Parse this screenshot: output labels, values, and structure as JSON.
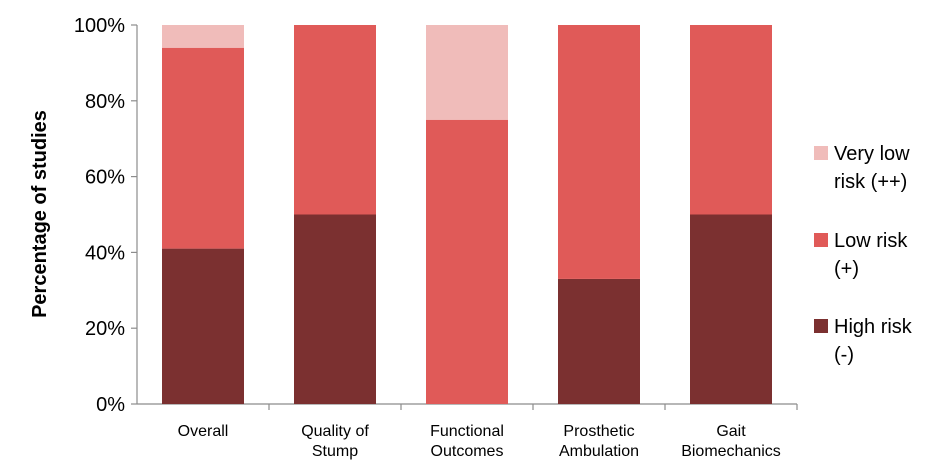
{
  "chart_data": {
    "type": "bar",
    "stacked": true,
    "percent": true,
    "categories": [
      [
        "Overall"
      ],
      [
        "Quality of",
        "Stump"
      ],
      [
        "Functional",
        "Outcomes"
      ],
      [
        "Prosthetic",
        "Ambulation"
      ],
      [
        "Gait",
        "Biomechanics"
      ]
    ],
    "series": [
      {
        "name": [
          "High risk",
          "(-)"
        ],
        "color": "#7B3030",
        "values": [
          41,
          50,
          0,
          33,
          50
        ]
      },
      {
        "name": [
          "Low risk",
          "(+)"
        ],
        "color": "#E05A58",
        "values": [
          53,
          50,
          75,
          67,
          50
        ]
      },
      {
        "name": [
          "Very low",
          "risk (++)"
        ],
        "color": "#F0BCBA",
        "values": [
          6,
          0,
          25,
          0,
          0
        ]
      }
    ],
    "ylabel": "Percentage of studies",
    "yticks": [
      "0%",
      "20%",
      "40%",
      "60%",
      "80%",
      "100%"
    ],
    "ylim": [
      0,
      100
    ],
    "grid": false,
    "legend": "right"
  }
}
